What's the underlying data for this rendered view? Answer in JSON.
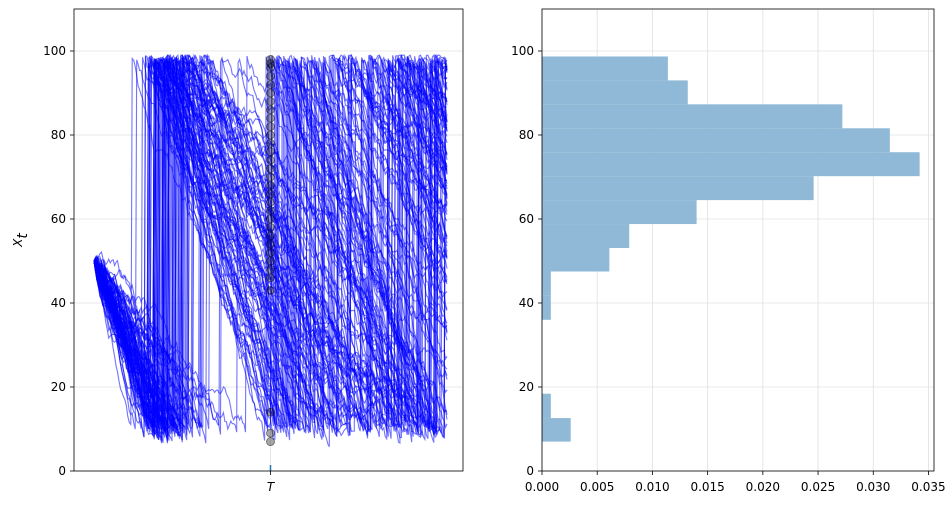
{
  "chart_data": [
    {
      "type": "line",
      "title": "",
      "ylabel": "X_t",
      "xlabel": "",
      "ylim": [
        0,
        110
      ],
      "yticks": [
        0,
        20,
        40,
        60,
        80,
        100
      ],
      "xtick_labels": [
        "T"
      ],
      "grid": true,
      "series_color": "#0000ff",
      "marker_color": "#000000",
      "n_paths": 100,
      "start_value": 50,
      "t_range": [
        0,
        1
      ],
      "t_T": 0.5,
      "floor": 8,
      "ceiling": 99,
      "values_at_T": [
        98,
        97,
        96,
        94,
        92,
        90,
        88,
        86,
        84,
        82,
        80,
        78,
        76,
        74,
        72,
        70,
        68,
        66,
        64,
        62,
        60,
        58,
        56,
        54,
        52,
        50,
        48,
        46,
        43,
        14,
        9,
        7
      ]
    },
    {
      "type": "bar",
      "orientation": "horizontal",
      "title": "",
      "xlabel": "",
      "ylabel": "",
      "xlim": [
        0,
        0.0355
      ],
      "ylim": [
        0,
        110
      ],
      "xtick_labels": [
        "0.000",
        "0.005",
        "0.010",
        "0.015",
        "0.020",
        "0.025",
        "0.030",
        "0.035"
      ],
      "xticks": [
        0,
        0.005,
        0.01,
        0.015,
        0.02,
        0.025,
        0.03,
        0.035
      ],
      "yticks": [
        0,
        20,
        40,
        60,
        80,
        100
      ],
      "grid": true,
      "bar_color": "#8fb9d6",
      "bins": [
        {
          "lo": 7.0,
          "hi": 12.6,
          "density": 0.0026
        },
        {
          "lo": 12.6,
          "hi": 18.4,
          "density": 0.0008
        },
        {
          "lo": 36.0,
          "hi": 41.7,
          "density": 0.0008
        },
        {
          "lo": 41.7,
          "hi": 47.5,
          "density": 0.0008
        },
        {
          "lo": 47.5,
          "hi": 53.1,
          "density": 0.0061
        },
        {
          "lo": 53.1,
          "hi": 58.8,
          "density": 0.0079
        },
        {
          "lo": 58.8,
          "hi": 64.5,
          "density": 0.014
        },
        {
          "lo": 64.5,
          "hi": 70.2,
          "density": 0.0246
        },
        {
          "lo": 70.2,
          "hi": 75.9,
          "density": 0.0342
        },
        {
          "lo": 75.9,
          "hi": 81.6,
          "density": 0.0315
        },
        {
          "lo": 81.6,
          "hi": 87.3,
          "density": 0.0272
        },
        {
          "lo": 87.3,
          "hi": 93.0,
          "density": 0.0132
        },
        {
          "lo": 93.0,
          "hi": 98.7,
          "density": 0.0114
        }
      ]
    }
  ]
}
